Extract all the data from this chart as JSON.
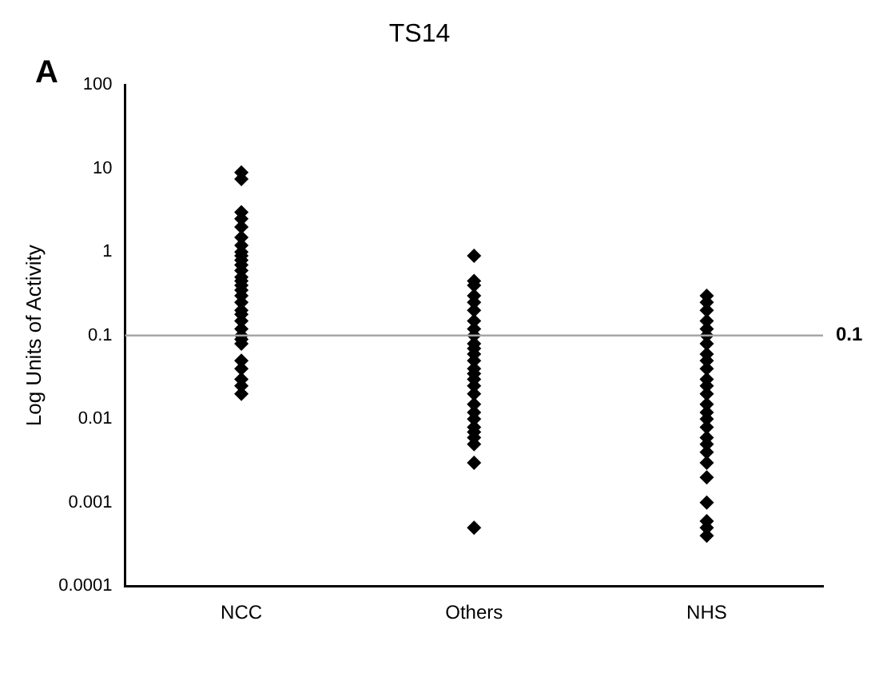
{
  "chart_data": {
    "type": "scatter",
    "title": "TS14",
    "ylabel": "Log Units of Activity",
    "categories": [
      "NCC",
      "Others",
      "NHS"
    ],
    "series": [
      {
        "color": "#000000",
        "x": [
          "NCC",
          "NCC",
          "NCC",
          "NCC",
          "NCC",
          "NCC",
          "NCC",
          "NCC",
          "NCC",
          "NCC",
          "NCC",
          "NCC",
          "NCC",
          "NCC",
          "NCC",
          "NCC",
          "NCC",
          "NCC",
          "NCC",
          "NCC",
          "NCC",
          "NCC",
          "NCC",
          "NCC",
          "NCC",
          "NCC",
          "NCC",
          "NCC",
          "NCC",
          "NCC",
          "Others",
          "Others",
          "Others",
          "Others",
          "Others",
          "Others",
          "Others",
          "Others",
          "Others",
          "Others",
          "Others",
          "Others",
          "Others",
          "Others",
          "Others",
          "Others",
          "Others",
          "Others",
          "Others",
          "Others",
          "Others",
          "Others",
          "Others",
          "Others",
          "Others",
          "Others",
          "Others",
          "NHS",
          "NHS",
          "NHS",
          "NHS",
          "NHS",
          "NHS",
          "NHS",
          "NHS",
          "NHS",
          "NHS",
          "NHS",
          "NHS",
          "NHS",
          "NHS",
          "NHS",
          "NHS",
          "NHS",
          "NHS",
          "NHS",
          "NHS",
          "NHS",
          "NHS",
          "NHS",
          "NHS",
          "NHS",
          "NHS"
        ],
        "values": [
          9,
          7.5,
          3,
          2.5,
          2,
          1.5,
          1.2,
          1,
          0.9,
          0.8,
          0.7,
          0.6,
          0.5,
          0.45,
          0.4,
          0.35,
          0.3,
          0.25,
          0.2,
          0.18,
          0.15,
          0.12,
          0.1,
          0.09,
          0.08,
          0.05,
          0.04,
          0.03,
          0.025,
          0.02,
          0.9,
          0.45,
          0.4,
          0.3,
          0.25,
          0.2,
          0.15,
          0.12,
          0.1,
          0.08,
          0.07,
          0.06,
          0.05,
          0.04,
          0.035,
          0.03,
          0.025,
          0.02,
          0.015,
          0.012,
          0.01,
          0.008,
          0.007,
          0.006,
          0.005,
          0.003,
          0.0005,
          0.3,
          0.25,
          0.2,
          0.15,
          0.12,
          0.1,
          0.08,
          0.06,
          0.05,
          0.04,
          0.03,
          0.025,
          0.02,
          0.015,
          0.012,
          0.01,
          0.008,
          0.006,
          0.005,
          0.004,
          0.003,
          0.002,
          0.001,
          0.0006,
          0.0005,
          0.0004
        ]
      }
    ],
    "log": "y",
    "ylim": [
      0.0001,
      100
    ],
    "yticks": [
      0.0001,
      0.001,
      0.01,
      0.1,
      1,
      10,
      100
    ],
    "marker": "diamond",
    "grid": false,
    "legend": false,
    "ref_lines": [
      {
        "axis": "y",
        "value": 0.1,
        "label": "0.1",
        "color": "#a6a6a6"
      }
    ],
    "annotations": [
      "A"
    ]
  }
}
